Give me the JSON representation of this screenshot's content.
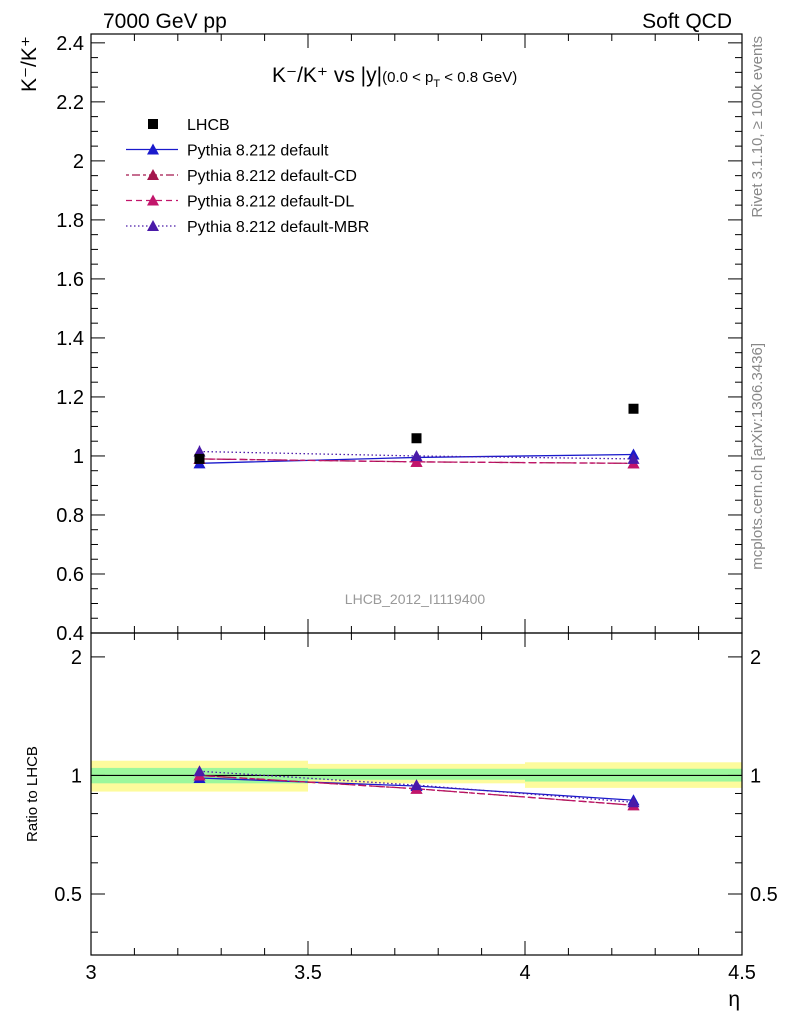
{
  "header": {
    "left": "7000 GeV pp",
    "right": "Soft QCD"
  },
  "side_labels": {
    "rivet": "Rivet 3.1.10, ≥ 100k events",
    "mcplots": "mcplots.cern.ch [arXiv:1306.3436]"
  },
  "title": {
    "main": "K⁻/K⁺ vs |y|",
    "sub": "(0.0 < p",
    "sub_T": "T",
    "sub_end": " < 0.8 GeV)"
  },
  "watermark": "LHCB_2012_I1119400",
  "legend": [
    {
      "label": "LHCB",
      "color": "#000000",
      "marker": "square",
      "dash": ""
    },
    {
      "label": "Pythia 8.212 default",
      "color": "#1a1acc",
      "marker": "triangle",
      "dash": ""
    },
    {
      "label": "Pythia 8.212 default-CD",
      "color": "#a3174d",
      "marker": "triangle",
      "dash": "3,3,8,3"
    },
    {
      "label": "Pythia 8.212 default-DL",
      "color": "#c2156b",
      "marker": "triangle",
      "dash": "6,4"
    },
    {
      "label": "Pythia 8.212 default-MBR",
      "color": "#4a1aa8",
      "marker": "triangle",
      "dash": "1.5,2.5"
    }
  ],
  "chart_data": [
    {
      "type": "scatter",
      "ylabel": "K⁻/K⁺",
      "xlim": [
        3.0,
        4.5
      ],
      "ylim": [
        0.4,
        2.43
      ],
      "y_ticks": [
        "0.4",
        "0.6",
        "0.8",
        "1",
        "1.2",
        "1.4",
        "1.6",
        "1.8",
        "2",
        "2.2",
        "2.4"
      ],
      "data": {
        "name": "LHCB",
        "x": [
          3.25,
          3.75,
          4.25
        ],
        "y": [
          0.99,
          1.06,
          1.16
        ],
        "xerr": [
          0.25,
          0.25,
          0.25
        ]
      },
      "series": [
        {
          "name": "Pythia 8.212 default",
          "x": [
            3.25,
            3.75,
            4.25
          ],
          "y": [
            0.975,
            0.995,
            1.005
          ],
          "yerr": [
            0.015,
            0.015,
            0.015
          ]
        },
        {
          "name": "Pythia 8.212 default-CD",
          "x": [
            3.25,
            3.75,
            4.25
          ],
          "y": [
            0.99,
            0.98,
            0.975
          ],
          "yerr": [
            0.012,
            0.012,
            0.012
          ]
        },
        {
          "name": "Pythia 8.212 default-DL",
          "x": [
            3.25,
            3.75,
            4.25
          ],
          "y": [
            0.99,
            0.98,
            0.975
          ],
          "yerr": [
            0.012,
            0.012,
            0.012
          ]
        },
        {
          "name": "Pythia 8.212 default-MBR",
          "x": [
            3.25,
            3.75,
            4.25
          ],
          "y": [
            1.015,
            1.0,
            0.99
          ],
          "yerr": [
            0.02,
            0.015,
            0.015
          ]
        }
      ]
    },
    {
      "type": "scatter",
      "ylabel": "Ratio to LHCB",
      "xlabel": "η",
      "xlim": [
        3.0,
        4.5
      ],
      "ylim": [
        0.35,
        2.3
      ],
      "x_ticks": [
        "3",
        "3.5",
        "4",
        "4.5"
      ],
      "y_ticks": [
        "0.5",
        "1",
        "2"
      ],
      "bands": [
        {
          "x": [
            3.0,
            3.5
          ],
          "stat": [
            0.955,
            1.045
          ],
          "total": [
            0.91,
            1.09
          ]
        },
        {
          "x": [
            3.5,
            4.0
          ],
          "stat": [
            0.975,
            1.04
          ],
          "total": [
            0.955,
            1.07
          ]
        },
        {
          "x": [
            4.0,
            4.5
          ],
          "stat": [
            0.965,
            1.04
          ],
          "total": [
            0.93,
            1.08
          ]
        }
      ],
      "series": [
        {
          "name": "Pythia 8.212 default",
          "x": [
            3.25,
            3.75,
            4.25
          ],
          "y": [
            0.985,
            0.94,
            0.865
          ]
        },
        {
          "name": "Pythia 8.212 default-CD",
          "x": [
            3.25,
            3.75,
            4.25
          ],
          "y": [
            1.0,
            0.925,
            0.84
          ]
        },
        {
          "name": "Pythia 8.212 default-DL",
          "x": [
            3.25,
            3.75,
            4.25
          ],
          "y": [
            1.0,
            0.925,
            0.84
          ]
        },
        {
          "name": "Pythia 8.212 default-MBR",
          "x": [
            3.25,
            3.75,
            4.25
          ],
          "y": [
            1.025,
            0.945,
            0.855
          ]
        }
      ]
    }
  ]
}
